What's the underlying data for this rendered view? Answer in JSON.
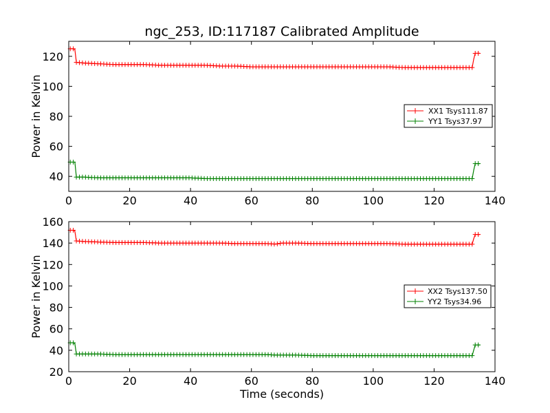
{
  "title": "ngc_253, ID:117187 Calibrated Amplitude",
  "xlabel": "Time (seconds)",
  "colors": {
    "red": "#ff0000",
    "green": "#008000"
  },
  "chart_data": [
    {
      "type": "line",
      "title": "ngc_253, ID:117187 Calibrated Amplitude",
      "xlabel": "",
      "ylabel": "Power in Kelvin",
      "xlim": [
        0,
        140
      ],
      "ylim": [
        30,
        130
      ],
      "xticks": [
        "0",
        "20",
        "40",
        "60",
        "80",
        "100",
        "120",
        "140"
      ],
      "yticks": [
        "40",
        "60",
        "80",
        "100",
        "120"
      ],
      "grid": false,
      "legend_position": "center-right",
      "marker": "+",
      "series": [
        {
          "name": "XX1 Tsys111.87",
          "color": "#ff0000",
          "x": [
            0.5,
            1,
            1.5,
            2,
            2.5,
            5,
            10,
            15,
            20,
            25,
            30,
            35,
            40,
            45,
            50,
            55,
            60,
            65,
            70,
            75,
            80,
            85,
            90,
            95,
            100,
            105,
            110,
            115,
            120,
            125,
            130,
            132.5,
            133,
            133.5,
            134,
            134.5,
            135
          ],
          "y": [
            125,
            125,
            125,
            124.5,
            116,
            115.5,
            115,
            114.5,
            114.5,
            114.5,
            114,
            114,
            114,
            114,
            113.5,
            113.5,
            113,
            113,
            113,
            113,
            113,
            113,
            113,
            113,
            113,
            113,
            112.5,
            112.5,
            112.5,
            112.5,
            112.5,
            112.5,
            118,
            122,
            122,
            122,
            122
          ]
        },
        {
          "name": "YY1 Tsys37.97",
          "color": "#008000",
          "x": [
            0.5,
            1,
            1.5,
            2,
            2.5,
            5,
            10,
            15,
            20,
            25,
            30,
            35,
            40,
            45,
            50,
            55,
            60,
            65,
            70,
            75,
            80,
            85,
            90,
            95,
            100,
            105,
            110,
            115,
            120,
            125,
            130,
            132.5,
            133,
            133.5,
            134,
            134.5,
            135
          ],
          "y": [
            49.5,
            49.5,
            49.5,
            49.5,
            39.5,
            39.5,
            39,
            39,
            39,
            39,
            39,
            39,
            39,
            38.5,
            38.5,
            38.5,
            38.5,
            38.5,
            38.5,
            38.5,
            38.5,
            38.5,
            38.5,
            38.5,
            38.5,
            38.5,
            38.5,
            38.5,
            38.5,
            38.5,
            38.5,
            38.5,
            44,
            48.5,
            48.5,
            48.5,
            48.5
          ]
        }
      ]
    },
    {
      "type": "line",
      "title": "",
      "xlabel": "Time (seconds)",
      "ylabel": "Power in Kelvin",
      "xlim": [
        0,
        140
      ],
      "ylim": [
        20,
        160
      ],
      "xticks": [
        "0",
        "20",
        "40",
        "60",
        "80",
        "100",
        "120",
        "140"
      ],
      "yticks": [
        "20",
        "40",
        "60",
        "80",
        "100",
        "120",
        "140",
        "160"
      ],
      "grid": false,
      "legend_position": "center-right",
      "marker": "+",
      "series": [
        {
          "name": "XX2 Tsys137.50",
          "color": "#ff0000",
          "x": [
            0.5,
            1,
            1.5,
            2,
            2.5,
            5,
            10,
            15,
            20,
            25,
            30,
            35,
            40,
            45,
            50,
            55,
            60,
            65,
            68,
            70,
            75,
            80,
            85,
            90,
            95,
            100,
            105,
            110,
            115,
            120,
            125,
            130,
            132.5,
            133,
            133.5,
            134,
            134.5,
            135
          ],
          "y": [
            152,
            152,
            152,
            151,
            142,
            141.5,
            141,
            140.5,
            140.5,
            140.5,
            140,
            140,
            140,
            140,
            140,
            139.5,
            139.5,
            139.5,
            139,
            140,
            140,
            139.5,
            139.5,
            139.5,
            139.5,
            139.5,
            139.5,
            139,
            139,
            139,
            139,
            139,
            139,
            144,
            148,
            148,
            148,
            148
          ]
        },
        {
          "name": "YY2 Tsys34.96",
          "color": "#008000",
          "x": [
            0.5,
            1,
            1.5,
            2,
            2.5,
            5,
            10,
            15,
            20,
            25,
            30,
            35,
            40,
            45,
            50,
            55,
            60,
            65,
            68,
            70,
            75,
            80,
            85,
            90,
            95,
            100,
            105,
            110,
            115,
            120,
            125,
            130,
            132.5,
            133,
            133.5,
            134,
            134.5,
            135
          ],
          "y": [
            47,
            47,
            47,
            46,
            36.5,
            36.5,
            36.5,
            36,
            36,
            36,
            36,
            36,
            36,
            36,
            36,
            36,
            36,
            36,
            35.5,
            35.5,
            35.5,
            35,
            35,
            35,
            35,
            35,
            35,
            35,
            35,
            35,
            35,
            35,
            35,
            40,
            45,
            45,
            45,
            45
          ]
        }
      ]
    }
  ]
}
